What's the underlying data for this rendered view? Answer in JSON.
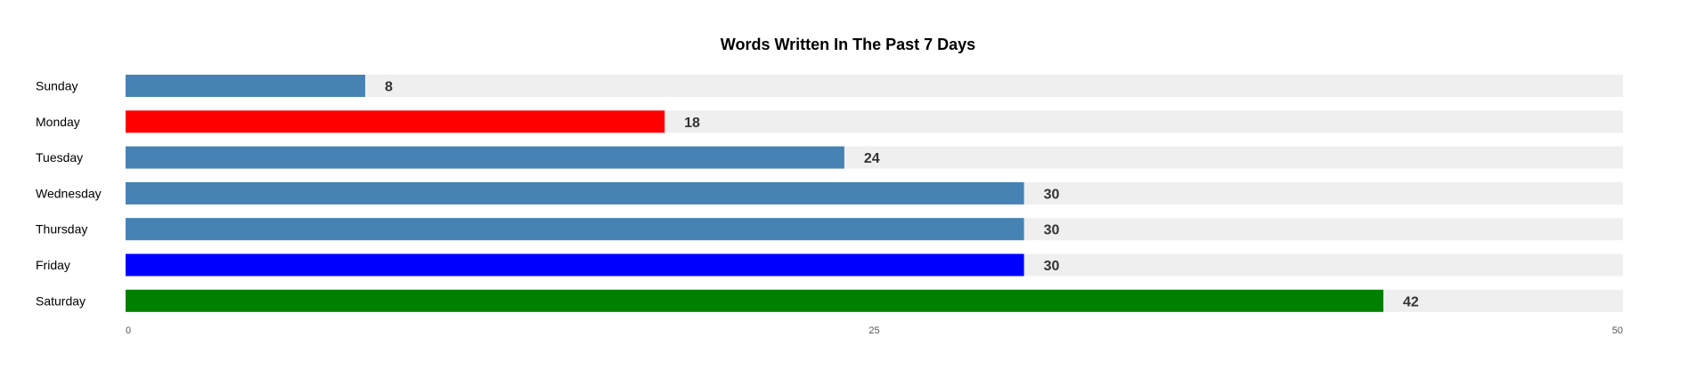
{
  "chart_data": {
    "type": "bar",
    "orientation": "horizontal",
    "title": "Words Written In The Past 7 Days",
    "categories": [
      "Sunday",
      "Monday",
      "Tuesday",
      "Wednesday",
      "Thursday",
      "Friday",
      "Saturday"
    ],
    "values": [
      8,
      18,
      24,
      30,
      30,
      30,
      42
    ],
    "bar_colors": [
      "#4682b4",
      "#ff0000",
      "#4682b4",
      "#4682b4",
      "#4682b4",
      "#0000ff",
      "#008000"
    ],
    "track_color": "#efefef",
    "xlim": [
      0,
      50
    ],
    "xticks": [
      {
        "value": 0,
        "label": "0"
      },
      {
        "value": 25,
        "label": "25"
      },
      {
        "value": 50,
        "label": "50"
      }
    ],
    "xlabel": "",
    "ylabel": "",
    "grid": false,
    "legend": "none"
  }
}
